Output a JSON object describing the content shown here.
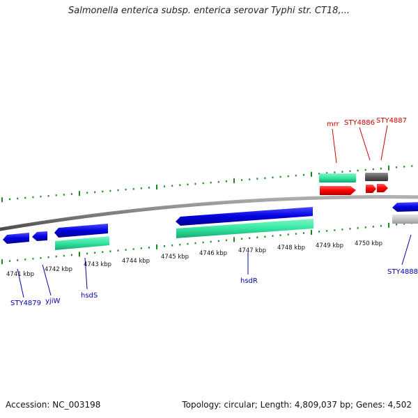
{
  "title": "Salmonella enterica subsp. enterica serovar Typhi str. CT18,...",
  "footer": {
    "accession": "Accession: NC_003198",
    "summary": "Topology: circular; Length: 4,809,037 bp; Genes: 4,502"
  },
  "kbp_labels": [
    "4741 kbp",
    "4742 kbp",
    "4743 kbp",
    "4744 kbp",
    "4745 kbp",
    "4746 kbp",
    "4747 kbp",
    "4748 kbp",
    "4749 kbp",
    "4750 kbp"
  ],
  "gene_labels": {
    "mrr": "mrr",
    "sty4886": "STY4886",
    "sty4887": "STY4887",
    "sty4888": "STY4888",
    "sty4879": "STY4879",
    "yjiw": "yjiW",
    "hsds": "hsdS",
    "hsdr": "hsdR"
  },
  "colors": {
    "forward_cds": "#ff0000",
    "reverse_cds": "#0000e0",
    "gene_green": "#33e6a0",
    "backbone": "#808080",
    "tick": "#1a8a1a",
    "label_red": "#cc0000",
    "label_blue": "#0000aa"
  }
}
